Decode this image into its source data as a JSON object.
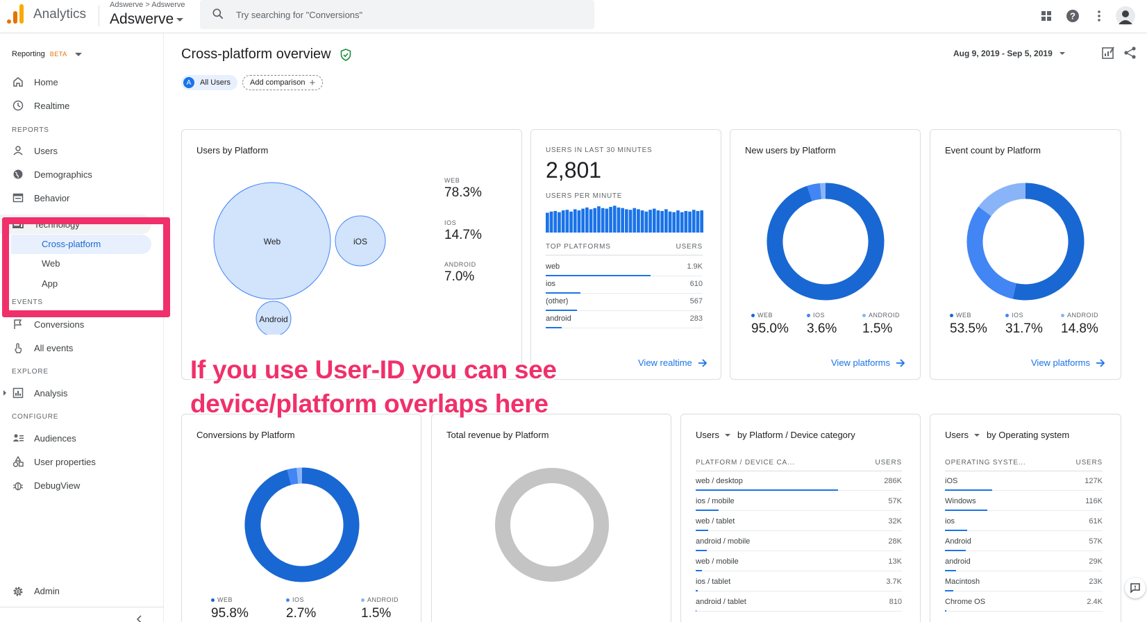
{
  "topbar": {
    "app_name": "Analytics",
    "account_crumb": "Adswerve > Adswerve",
    "account_name": "Adswerve",
    "search_placeholder": "Try searching for \"Conversions\""
  },
  "sidebar": {
    "reporting": "Reporting",
    "beta": "BETA",
    "home": "Home",
    "realtime": "Realtime",
    "reports_label": "REPORTS",
    "users": "Users",
    "demographics": "Demographics",
    "behavior": "Behavior",
    "technology": "Technology",
    "cross_platform": "Cross-platform",
    "web": "Web",
    "app": "App",
    "events_label": "EVENTS",
    "conversions": "Conversions",
    "all_events": "All events",
    "explore_label": "EXPLORE",
    "analysis": "Analysis",
    "configure_label": "CONFIGURE",
    "audiences": "Audiences",
    "user_properties": "User properties",
    "debugview": "DebugView",
    "admin": "Admin"
  },
  "header": {
    "title": "Cross-platform overview",
    "chip_users_initial": "A",
    "chip_users": "All Users",
    "add_comparison": "Add comparison",
    "date_range": "Aug 9, 2019 - Sep 5, 2019"
  },
  "users_by_platform": {
    "title": "Users by Platform",
    "bubbles": [
      "Web",
      "iOS",
      "Android"
    ],
    "metrics": [
      {
        "label": "WEB",
        "value": "78.3%"
      },
      {
        "label": "IOS",
        "value": "14.7%"
      },
      {
        "label": "ANDROID",
        "value": "7.0%"
      }
    ]
  },
  "realtime_card": {
    "users_last_30": "USERS IN LAST 30 MINUTES",
    "count": "2,801",
    "users_per_minute": "USERS PER MINUTE",
    "top_platforms": "TOP PLATFORMS",
    "users_col": "USERS",
    "rows": [
      {
        "k": "web",
        "v": "1.9K",
        "frac": 0.67
      },
      {
        "k": "ios",
        "v": "610",
        "frac": 0.22
      },
      {
        "k": "(other)",
        "v": "567",
        "frac": 0.2
      },
      {
        "k": "android",
        "v": "283",
        "frac": 0.1
      }
    ],
    "view_link": "View realtime",
    "minute_values": [
      0.68,
      0.72,
      0.74,
      0.7,
      0.76,
      0.78,
      0.72,
      0.8,
      0.76,
      0.82,
      0.86,
      0.8,
      0.84,
      0.9,
      0.84,
      0.82,
      0.88,
      0.92,
      0.86,
      0.84,
      0.8,
      0.78,
      0.84,
      0.8,
      0.76,
      0.72,
      0.78,
      0.82,
      0.76,
      0.74,
      0.8,
      0.72,
      0.7,
      0.76,
      0.7,
      0.74,
      0.72,
      0.78,
      0.74,
      0.76
    ]
  },
  "new_users": {
    "title": "New users by Platform",
    "legend": [
      {
        "label": "WEB",
        "value": "95.0%",
        "color": "#1967d2"
      },
      {
        "label": "IOS",
        "value": "3.6%",
        "color": "#4285f4"
      },
      {
        "label": "ANDROID",
        "value": "1.5%",
        "color": "#8ab4f8"
      }
    ],
    "view_link": "View platforms"
  },
  "event_count": {
    "title": "Event count by Platform",
    "legend": [
      {
        "label": "WEB",
        "value": "53.5%",
        "color": "#1967d2"
      },
      {
        "label": "IOS",
        "value": "31.7%",
        "color": "#4285f4"
      },
      {
        "label": "ANDROID",
        "value": "14.8%",
        "color": "#8ab4f8"
      }
    ],
    "view_link": "View platforms"
  },
  "conversions": {
    "title": "Conversions by Platform",
    "legend": [
      {
        "label": "WEB",
        "value": "95.8%",
        "color": "#1967d2"
      },
      {
        "label": "IOS",
        "value": "2.7%",
        "color": "#4285f4"
      },
      {
        "label": "ANDROID",
        "value": "1.5%",
        "color": "#8ab4f8"
      }
    ]
  },
  "revenue": {
    "title": "Total revenue by Platform"
  },
  "device_category": {
    "metric": "Users",
    "by": "by Platform / Device category",
    "col_k": "PLATFORM / DEVICE CA...",
    "col_v": "USERS",
    "rows": [
      {
        "k": "web / desktop",
        "v": "286K",
        "frac": 0.69
      },
      {
        "k": "ios / mobile",
        "v": "57K",
        "frac": 0.11
      },
      {
        "k": "web / tablet",
        "v": "32K",
        "frac": 0.06
      },
      {
        "k": "android / mobile",
        "v": "28K",
        "frac": 0.055
      },
      {
        "k": "web / mobile",
        "v": "13K",
        "frac": 0.03
      },
      {
        "k": "ios / tablet",
        "v": "3.7K",
        "frac": 0.01
      },
      {
        "k": "android / tablet",
        "v": "810",
        "frac": 0.005
      }
    ]
  },
  "operating_system": {
    "metric": "Users",
    "by": "by Operating system",
    "col_k": "OPERATING SYSTE...",
    "col_v": "USERS",
    "rows": [
      {
        "k": "iOS",
        "v": "127K",
        "frac": 0.3
      },
      {
        "k": "Windows",
        "v": "116K",
        "frac": 0.27
      },
      {
        "k": "ios",
        "v": "61K",
        "frac": 0.14
      },
      {
        "k": "Android",
        "v": "57K",
        "frac": 0.13
      },
      {
        "k": "android",
        "v": "29K",
        "frac": 0.07
      },
      {
        "k": "Macintosh",
        "v": "23K",
        "frac": 0.055
      },
      {
        "k": "Chrome OS",
        "v": "2.4K",
        "frac": 0.01
      }
    ]
  },
  "annotation": {
    "line1": "If you use User-ID you can see",
    "line2": "device/platform overlaps here",
    "color": "#f0306a"
  }
}
